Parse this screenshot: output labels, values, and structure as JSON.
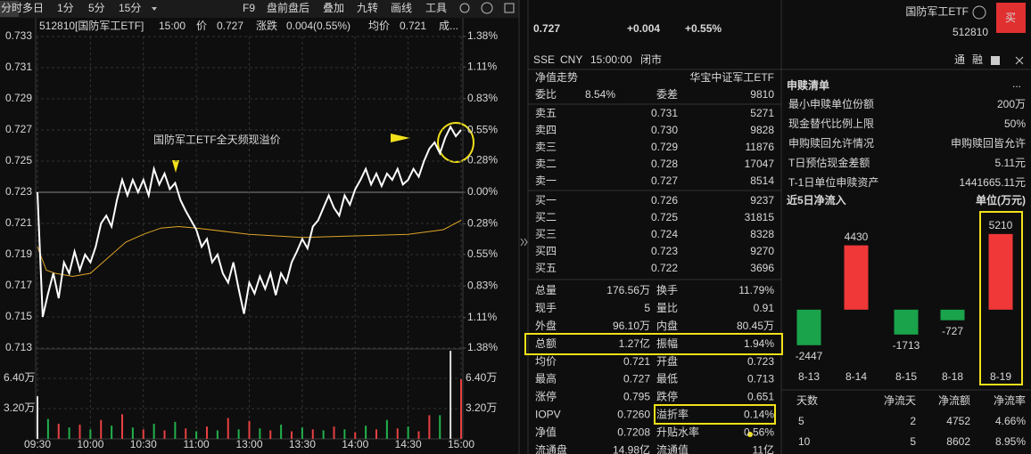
{
  "toolbar": {
    "tabs": [
      "分时",
      "多日",
      "1分",
      "5分",
      "15分"
    ],
    "tools": [
      "F9",
      "盘前盘后",
      "叠加",
      "九转",
      "画线",
      "工具"
    ]
  },
  "quote_header": {
    "code_name": "512810[国防军工ETF]",
    "time": "15:00",
    "price_label": "价",
    "price": "0.727",
    "change_label": "涨跌",
    "change": "0.004(0.55%)",
    "avg_label": "均价",
    "avg": "0.721",
    "more": "成..."
  },
  "chart_data": [
    {
      "type": "line",
      "annotation": "国防军工ETF全天频现溢价",
      "x": [
        0,
        3,
        6,
        9,
        12,
        15,
        18,
        21,
        24,
        27,
        30,
        33,
        36,
        39,
        42,
        45,
        48,
        51,
        54,
        57,
        60,
        63,
        66,
        69,
        72,
        75,
        78,
        81,
        84,
        87,
        90,
        93,
        96,
        99,
        102,
        105,
        108,
        111,
        114,
        117,
        120,
        123,
        126,
        129,
        132,
        135,
        138,
        141,
        144,
        147,
        150,
        153,
        156,
        159,
        162,
        165,
        168,
        171,
        174,
        177,
        180,
        183,
        186,
        189,
        192,
        195,
        198,
        201,
        204,
        207,
        210,
        213,
        216,
        219,
        222,
        225,
        228,
        231,
        234,
        237,
        240
      ],
      "xlim": [
        0,
        240
      ],
      "xticks": [
        {
          "value": 0,
          "label": "09:30"
        },
        {
          "value": 30,
          "label": "10:00"
        },
        {
          "value": 60,
          "label": "10:30"
        },
        {
          "value": 90,
          "label": "11:00"
        },
        {
          "value": 120,
          "label": "13:00"
        },
        {
          "value": 150,
          "label": "13:30"
        },
        {
          "value": 180,
          "label": "14:00"
        },
        {
          "value": 210,
          "label": "14:30"
        },
        {
          "value": 240,
          "label": "15:00"
        }
      ],
      "ylim": [
        0.713,
        0.733
      ],
      "yticks": [
        0.733,
        0.731,
        0.729,
        0.727,
        0.725,
        0.723,
        0.721,
        0.719,
        0.717,
        0.715,
        0.713
      ],
      "y2lim": [
        -1.38,
        1.38
      ],
      "y2ticks": [
        {
          "value": 1.38,
          "label": "1.38%"
        },
        {
          "value": 1.11,
          "label": "1.11%"
        },
        {
          "value": 0.83,
          "label": "0.83%"
        },
        {
          "value": 0.55,
          "label": "0.55%"
        },
        {
          "value": 0.28,
          "label": "0.28%"
        },
        {
          "value": 0,
          "label": "0.00%"
        },
        {
          "value": -0.28,
          "label": "0.28%"
        },
        {
          "value": -0.55,
          "label": "0.55%"
        },
        {
          "value": -0.83,
          "label": "0.83%"
        },
        {
          "value": -1.11,
          "label": "1.11%"
        },
        {
          "value": -1.38,
          "label": "1.38%"
        }
      ],
      "series": [
        {
          "color": "#ffffff",
          "values": [
            0.723,
            0.715,
            0.7165,
            0.7178,
            0.7162,
            0.7185,
            0.7178,
            0.7192,
            0.718,
            0.719,
            0.7185,
            0.7195,
            0.721,
            0.7215,
            0.7208,
            0.7225,
            0.7238,
            0.7228,
            0.7238,
            0.723,
            0.7238,
            0.7228,
            0.7245,
            0.7235,
            0.7242,
            0.7232,
            0.7236,
            0.7225,
            0.7218,
            0.7212,
            0.7206,
            0.7195,
            0.72,
            0.7185,
            0.719,
            0.7178,
            0.7172,
            0.7185,
            0.7168,
            0.7152,
            0.7172,
            0.7165,
            0.7176,
            0.7168,
            0.7178,
            0.7164,
            0.7178,
            0.7172,
            0.7185,
            0.7192,
            0.72,
            0.7194,
            0.7208,
            0.7212,
            0.722,
            0.7228,
            0.722,
            0.7215,
            0.7228,
            0.7222,
            0.7232,
            0.7238,
            0.7245,
            0.7235,
            0.7242,
            0.7234,
            0.7242,
            0.7238,
            0.7245,
            0.7235,
            0.7238,
            0.7245,
            0.724,
            0.725,
            0.7258,
            0.7262,
            0.7255,
            0.7265,
            0.7272,
            0.7266,
            0.727
          ]
        },
        {
          "color": "#e0a526",
          "x": [
            0,
            5,
            10,
            20,
            30,
            40,
            50,
            60,
            70,
            80,
            90,
            120,
            150,
            180,
            210,
            230,
            240
          ],
          "values": [
            0.7195,
            0.718,
            0.7178,
            0.7176,
            0.7178,
            0.7188,
            0.7198,
            0.7203,
            0.7207,
            0.7208,
            0.7207,
            0.7203,
            0.7201,
            0.7202,
            0.7203,
            0.7206,
            0.7212
          ]
        }
      ]
    },
    {
      "type": "bar",
      "x": [
        0,
        6,
        12,
        18,
        24,
        30,
        36,
        42,
        48,
        54,
        60,
        66,
        72,
        78,
        84,
        90,
        96,
        102,
        108,
        114,
        120,
        126,
        132,
        138,
        144,
        150,
        156,
        162,
        168,
        174,
        180,
        186,
        192,
        198,
        204,
        210,
        216,
        222,
        228,
        234,
        240
      ],
      "values": [
        4.5,
        2.1,
        1.6,
        1.2,
        1.5,
        1.0,
        2.0,
        1.4,
        2.6,
        1.2,
        1.0,
        1.6,
        0.9,
        1.8,
        1.1,
        0.8,
        1.3,
        0.9,
        2.2,
        1.0,
        1.9,
        1.1,
        0.9,
        1.5,
        0.8,
        1.2,
        1.0,
        0.9,
        1.3,
        1.0,
        0.7,
        1.4,
        1.0,
        2.0,
        1.1,
        1.3,
        0.8,
        2.5,
        2.5,
        9.3,
        6.3
      ],
      "colors": [
        "#e0e0e0",
        "#22b04b",
        "#e84040",
        "#22b04b",
        "#e84040",
        "#22b04b",
        "#e84040",
        "#22b04b",
        "#e84040",
        "#22b04b",
        "#e84040",
        "#22b04b",
        "#e84040",
        "#22b04b",
        "#e84040",
        "#22b04b",
        "#e84040",
        "#22b04b",
        "#e84040",
        "#22b04b",
        "#e84040",
        "#22b04b",
        "#e84040",
        "#22b04b",
        "#e84040",
        "#22b04b",
        "#e84040",
        "#22b04b",
        "#e84040",
        "#22b04b",
        "#e84040",
        "#22b04b",
        "#e84040",
        "#22b04b",
        "#e84040",
        "#22b04b",
        "#e84040",
        "#e84040",
        "#22b04b",
        "#e0e0e0",
        "#e84040"
      ],
      "xlim": [
        0,
        240
      ],
      "ylim": [
        0,
        9.5
      ],
      "yticks": [
        {
          "value": 6.4,
          "label": "6.40万"
        },
        {
          "value": 3.2,
          "label": "3.20万"
        }
      ]
    },
    {
      "type": "bar",
      "title": "近5日净流入",
      "unit": "单位(万元)",
      "categories": [
        "8-13",
        "8-14",
        "8-15",
        "8-18",
        "8-19"
      ],
      "values": [
        -2447,
        4430,
        -1713,
        -727,
        5210
      ],
      "up_color": "#f03838",
      "down_color": "#1aa34a",
      "ylim": [
        -4300,
        6000
      ]
    }
  ],
  "quote": {
    "price": "0.727",
    "change": "+0.004",
    "change_pct": "+0.55%",
    "meta": [
      "SSE",
      "CNY",
      "15:00:00",
      "闭市"
    ]
  },
  "order_book": {
    "nav_trend": "净值走势",
    "index_name": "华宝中证军工ETF",
    "ratio_label": "委比",
    "ratio": "8.54%",
    "diff_label": "委差",
    "diff": "9810",
    "asks": [
      [
        "卖五",
        "0.731",
        "5271"
      ],
      [
        "卖四",
        "0.730",
        "9828"
      ],
      [
        "卖三",
        "0.729",
        "11876"
      ],
      [
        "卖二",
        "0.728",
        "17047"
      ],
      [
        "卖一",
        "0.727",
        "8514"
      ]
    ],
    "bids": [
      [
        "买一",
        "0.726",
        "9237"
      ],
      [
        "买二",
        "0.725",
        "31815"
      ],
      [
        "买三",
        "0.724",
        "8328"
      ],
      [
        "买四",
        "0.723",
        "9270"
      ],
      [
        "买五",
        "0.722",
        "3696"
      ]
    ]
  },
  "stats": [
    [
      "总量",
      "176.56万",
      "换手",
      "11.79%"
    ],
    [
      "现手",
      "5",
      "量比",
      "0.91"
    ],
    [
      "外盘",
      "96.10万",
      "内盘",
      "80.45万"
    ],
    [
      "总额",
      "1.27亿",
      "振幅",
      "1.94%"
    ],
    [
      "均价",
      "0.721",
      "开盘",
      "0.723"
    ],
    [
      "最高",
      "0.727",
      "最低",
      "0.713"
    ],
    [
      "涨停",
      "0.795",
      "跌停",
      "0.651"
    ],
    [
      "IOPV",
      "0.7260",
      "溢折率",
      "0.14%"
    ],
    [
      "净值",
      "0.7208",
      "升贴水率",
      "0.56%"
    ],
    [
      "流通盘",
      "14.98亿",
      "流通值",
      "11亿"
    ]
  ],
  "security": {
    "name": "国防军工ETF",
    "code": "512810",
    "buy": "买",
    "badges": [
      "通",
      "融"
    ]
  },
  "creation": {
    "title": "申赎清单",
    "more": "...",
    "rows": [
      [
        "最小申赎单位份额",
        "200万"
      ],
      [
        "现金替代比例上限",
        "50%"
      ],
      [
        "申购赎回允许情况",
        "申购赎回皆允许"
      ],
      [
        "T日预估现金差额",
        "5.11元"
      ],
      [
        "T-1日单位申赎资产",
        "1441665.11元"
      ]
    ]
  },
  "flow_table": {
    "header": [
      "天数",
      "净流天",
      "净流额",
      "净流率"
    ],
    "rows": [
      [
        "5",
        "2",
        "4752",
        "4.66%"
      ],
      [
        "10",
        "5",
        "8602",
        "8.95%"
      ]
    ]
  }
}
